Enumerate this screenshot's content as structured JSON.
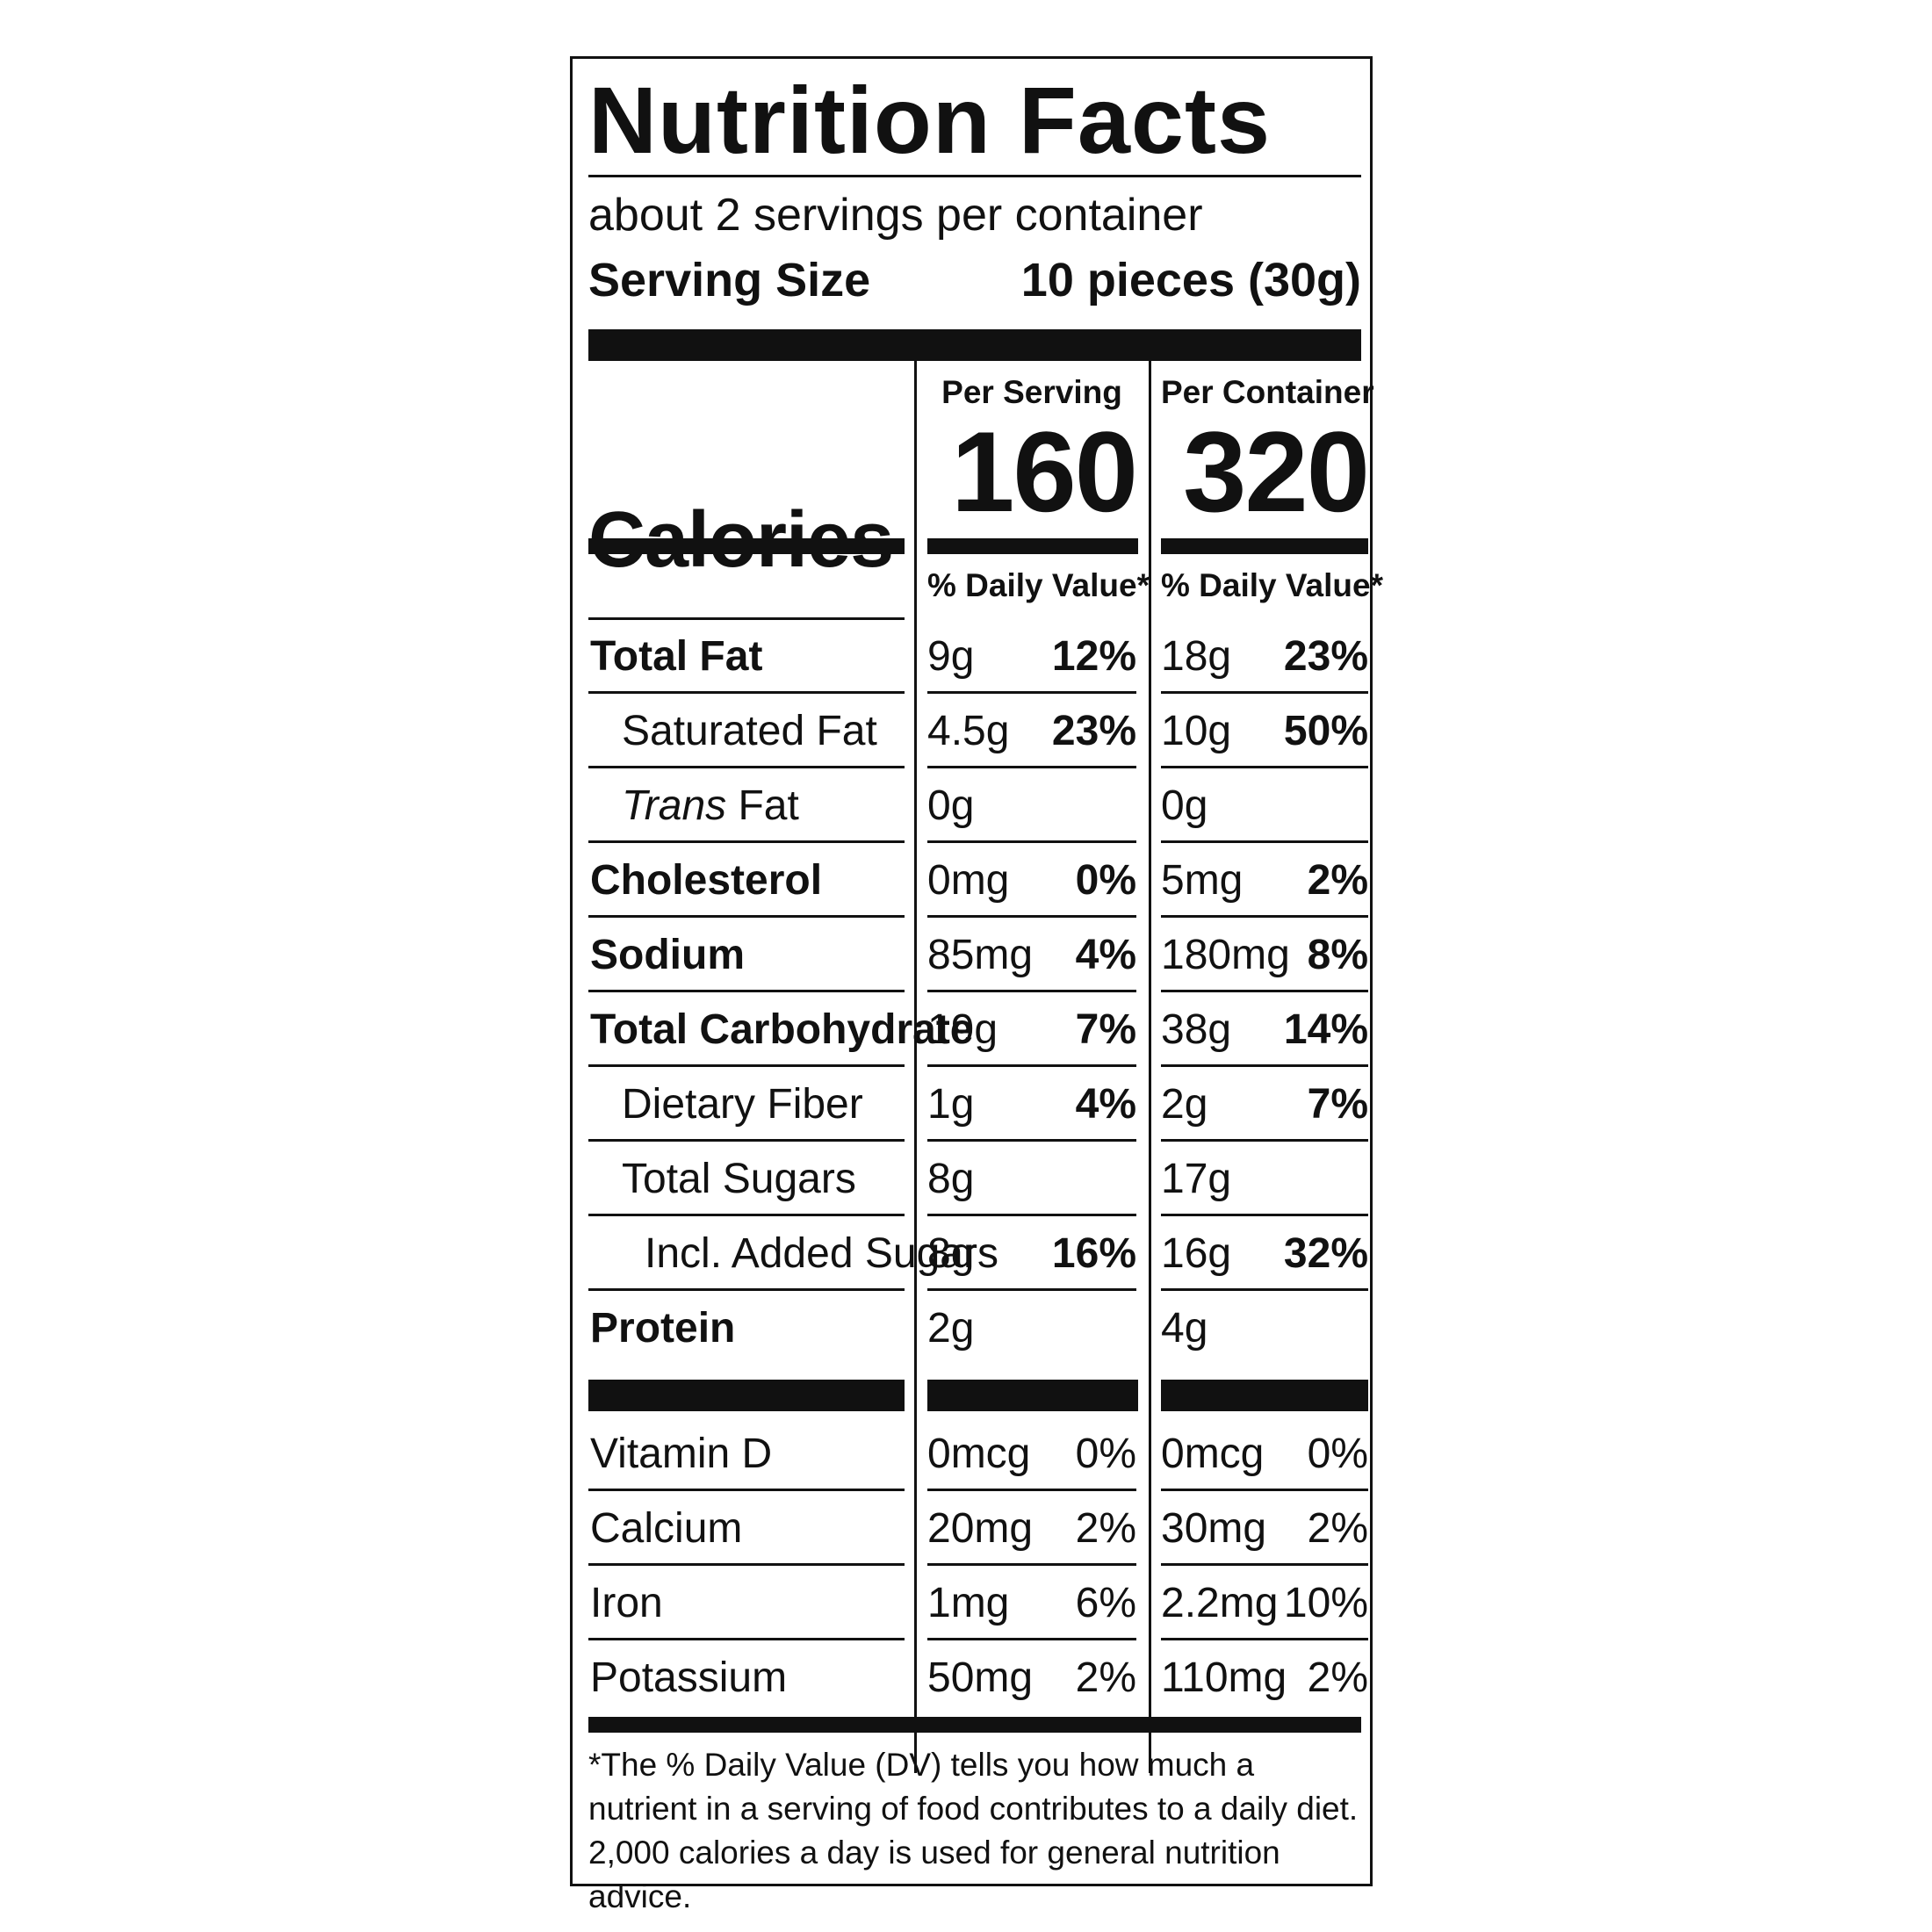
{
  "title": "Nutrition Facts",
  "servings_per_container": "about 2 servings per container",
  "serving_size": {
    "label": "Serving Size",
    "value": "10 pieces (30g)"
  },
  "columns": {
    "per_serving": "Per Serving",
    "per_container": "Per Container"
  },
  "calories": {
    "label": "Calories",
    "per_serving": "160",
    "per_container": "320"
  },
  "dv_header": "% Daily Value*",
  "nutrients": [
    {
      "name": "Total Fat",
      "bold": true,
      "indent": 0,
      "serving_amt": "9g",
      "serving_dv": "12%",
      "container_amt": "18g",
      "container_dv": "23%"
    },
    {
      "name": "Saturated Fat",
      "bold": false,
      "indent": 1,
      "serving_amt": "4.5g",
      "serving_dv": "23%",
      "container_amt": "10g",
      "container_dv": "50%"
    },
    {
      "name": "Fat",
      "prefix_italic": "Trans",
      "bold": false,
      "indent": 1,
      "serving_amt": "0g",
      "serving_dv": "",
      "container_amt": "0g",
      "container_dv": ""
    },
    {
      "name": "Cholesterol",
      "bold": true,
      "indent": 0,
      "serving_amt": "0mg",
      "serving_dv": "0%",
      "container_amt": "5mg",
      "container_dv": "2%"
    },
    {
      "name": "Sodium",
      "bold": true,
      "indent": 0,
      "serving_amt": "85mg",
      "serving_dv": "4%",
      "container_amt": "180mg",
      "container_dv": "8%"
    },
    {
      "name": "Total Carbohydrate",
      "bold": true,
      "indent": 0,
      "serving_amt": "19g",
      "serving_dv": "7%",
      "container_amt": "38g",
      "container_dv": "14%"
    },
    {
      "name": "Dietary Fiber",
      "bold": false,
      "indent": 1,
      "serving_amt": "1g",
      "serving_dv": "4%",
      "container_amt": "2g",
      "container_dv": "7%"
    },
    {
      "name": "Total Sugars",
      "bold": false,
      "indent": 1,
      "serving_amt": "8g",
      "serving_dv": "",
      "container_amt": "17g",
      "container_dv": ""
    },
    {
      "name": "Incl. Added Sugars",
      "bold": false,
      "indent": 2,
      "serving_amt": "8g",
      "serving_dv": "16%",
      "container_amt": "16g",
      "container_dv": "32%"
    },
    {
      "name": "Protein",
      "bold": true,
      "indent": 0,
      "serving_amt": "2g",
      "serving_dv": "",
      "container_amt": "4g",
      "container_dv": ""
    }
  ],
  "micronutrients": [
    {
      "name": "Vitamin D",
      "serving_amt": "0mcg",
      "serving_dv": "0%",
      "container_amt": "0mcg",
      "container_dv": "0%"
    },
    {
      "name": "Calcium",
      "serving_amt": "20mg",
      "serving_dv": "2%",
      "container_amt": "30mg",
      "container_dv": "2%"
    },
    {
      "name": "Iron",
      "serving_amt": "1mg",
      "serving_dv": "6%",
      "container_amt": "2.2mg",
      "container_dv": "10%"
    },
    {
      "name": "Potassium",
      "serving_amt": "50mg",
      "serving_dv": "2%",
      "container_amt": "110mg",
      "container_dv": "2%"
    }
  ],
  "footnote": "*The % Daily Value (DV) tells you how much a nutrient in a serving of food contributes to a daily diet. 2,000 calories a day is used for general nutrition advice."
}
